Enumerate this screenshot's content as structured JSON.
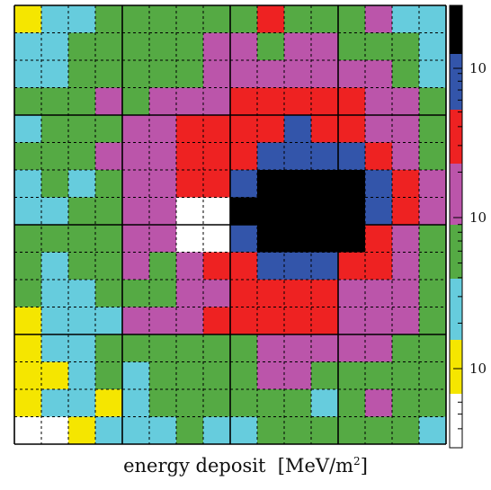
{
  "chart_data": {
    "type": "heatmap",
    "xlabel": "energy deposit",
    "unit_prefix": "[MeV/m",
    "unit_exp": "2",
    "unit_suffix": "]",
    "nx": 16,
    "ny": 16,
    "palette": {
      "Y": "#f5e600",
      "C": "#66ccdd",
      "G": "#55aa44",
      "M": "#bb55aa",
      "R": "#ee2222",
      "B": "#3355aa",
      "K": "#000000",
      "W": "#ffffff"
    },
    "rows": [
      "YCCGGGGGGRGGGMCC",
      "CCGGGGGMMGMMGGGC",
      "CCGGGGGMMMMMMMGC",
      "GGGMGMMMRRRRRMMG",
      "CGGGMMRRRRBRRMMG",
      "GGGMMMRRRBBBBRMG",
      "CGCGMMRRBKKKKBRM",
      "CCGGMMWWKKKKKBRM",
      "GGGGMMWWBKKKKRMG",
      "GCGGMGMRRBBBRRMG",
      "GCCGGGMMRRRRMMMG",
      "YCCCMMMRRRRRMMMG",
      "YCCGGGGGGMMMMMGG",
      "YYCGCGGGGMMGGGGG",
      "YCCYCGGGGGGCGMGG",
      "WWYCCCGCCGGGGGGC"
    ],
    "colorbar": {
      "colors_bottom_to_top": [
        "W",
        "Y",
        "C",
        "G",
        "M",
        "R",
        "B",
        "K"
      ],
      "tick_labels": [
        "10",
        "10",
        "10"
      ]
    }
  }
}
